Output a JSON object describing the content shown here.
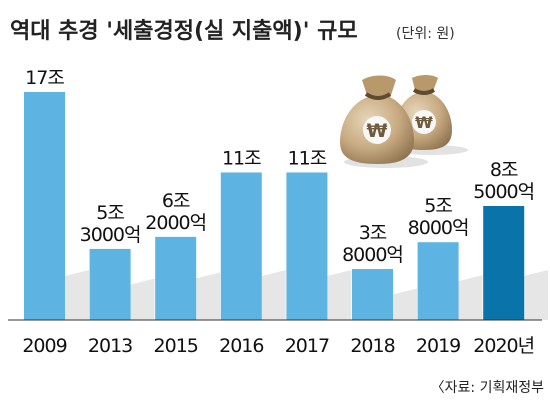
{
  "chart_data": {
    "type": "bar",
    "title": "역대 추경 '세출경정(실 지출액)' 규모",
    "unit_note": "(단위: 원)",
    "source": "〈자료: 기획재정부",
    "categories": [
      "2009",
      "2013",
      "2015",
      "2016",
      "2017",
      "2018",
      "2019",
      "2020년"
    ],
    "values": [
      17,
      5.3,
      6.2,
      11,
      11,
      3.8,
      5.8,
      8.5
    ],
    "value_unit": "조 원",
    "value_labels": [
      [
        "17조"
      ],
      [
        "5조",
        "3000억"
      ],
      [
        "6조",
        "2000억"
      ],
      [
        "11조"
      ],
      [
        "11조"
      ],
      [
        "3조",
        "8000억"
      ],
      [
        "5조",
        "8000억"
      ],
      [
        "8조",
        "5000억"
      ]
    ],
    "ylim": [
      0,
      17
    ],
    "grid": false,
    "colors": {
      "bar": "#5db4e3",
      "highlight_bar": "#0a74aa",
      "shadow": "#e6e6e6",
      "baseline": "#333333"
    },
    "highlight_index": 7
  },
  "icons": {
    "illustration": "money-bags-icon"
  }
}
